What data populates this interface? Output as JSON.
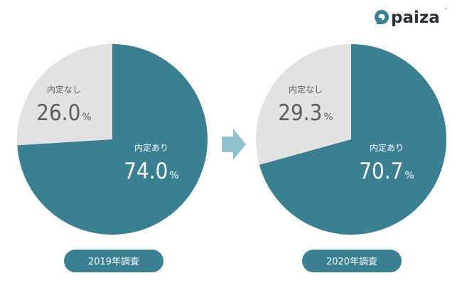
{
  "brand": {
    "name": "paiza",
    "trademark": "™"
  },
  "arrow": {
    "color": "#8fc1cf"
  },
  "colors": {
    "teal": "#3a7f92",
    "gray": "#e2e2e2",
    "dark_text": "#5e5e5e",
    "pill": "#3a7f92"
  },
  "chart_data": [
    {
      "type": "pie",
      "survey_label": "2019年調査",
      "slices": [
        {
          "label": "内定なし",
          "value": 26.0,
          "value_text": "26.0",
          "unit": "%",
          "color": "#e2e2e2"
        },
        {
          "label": "内定あり",
          "value": 74.0,
          "value_text": "74.0",
          "unit": "%",
          "color": "#3a7f92"
        }
      ]
    },
    {
      "type": "pie",
      "survey_label": "2020年調査",
      "slices": [
        {
          "label": "内定なし",
          "value": 29.3,
          "value_text": "29.3",
          "unit": "%",
          "color": "#e2e2e2"
        },
        {
          "label": "内定あり",
          "value": 70.7,
          "value_text": "70.7",
          "unit": "%",
          "color": "#3a7f92"
        }
      ]
    }
  ]
}
